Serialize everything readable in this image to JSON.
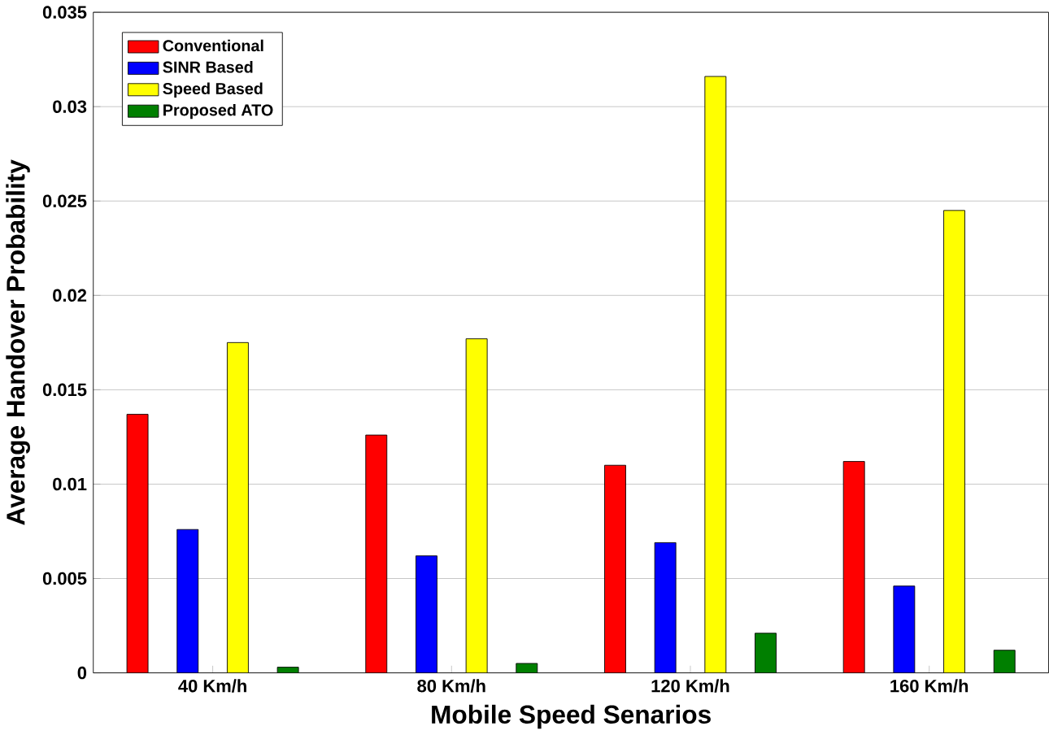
{
  "chart_data": {
    "type": "bar",
    "xlabel": "Mobile Speed Senarios",
    "ylabel": "Average Handover Probability",
    "categories": [
      "40 Km/h",
      "80 Km/h",
      "120 Km/h",
      "160 Km/h"
    ],
    "series": [
      {
        "name": "Conventional",
        "color": "#ff0000",
        "values": [
          0.0137,
          0.0126,
          0.011,
          0.0112
        ]
      },
      {
        "name": "SINR Based",
        "color": "#0000ff",
        "values": [
          0.0076,
          0.0062,
          0.0069,
          0.0046
        ]
      },
      {
        "name": "Speed Based",
        "color": "#ffff00",
        "values": [
          0.0175,
          0.0177,
          0.0316,
          0.0245
        ]
      },
      {
        "name": "Proposed ATO",
        "color": "#007f00",
        "values": [
          0.0003,
          0.0005,
          0.0021,
          0.0012
        ]
      }
    ],
    "ylim": [
      0,
      0.035
    ],
    "yticks": [
      0,
      0.005,
      0.01,
      0.015,
      0.02,
      0.025,
      0.03,
      0.035
    ],
    "grid": "y",
    "legend": "top left"
  }
}
